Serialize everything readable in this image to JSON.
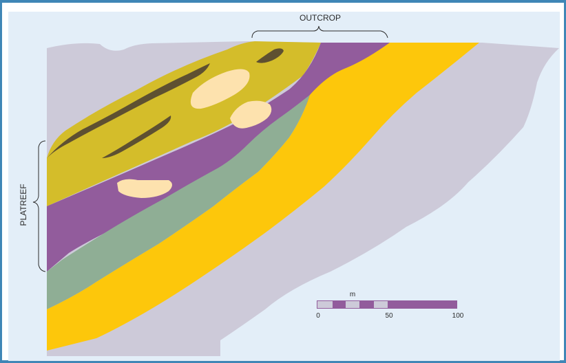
{
  "labels": {
    "outcrop": "OUTCROP",
    "platreef": "PLATREEF"
  },
  "scale_bar": {
    "unit": "m",
    "ticks": [
      "0",
      "50",
      "100"
    ]
  },
  "colors": {
    "frame": "#3f86b6",
    "background": "#e3eef8",
    "host_rock": "#cdcad9",
    "olive_layer": "#d4bd2a",
    "dark_lenses": "#5e5031",
    "purple_layer": "#925c9c",
    "green_layer": "#8fae95",
    "yellow_layer": "#fdc70b",
    "pale_inclusions": "#fde2ae"
  }
}
